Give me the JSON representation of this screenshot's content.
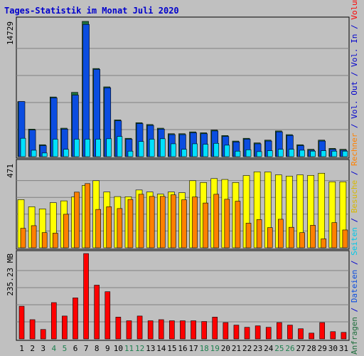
{
  "title": "Tages-Statistik im Monat Juli 2020",
  "colors": {
    "background": "#c0c0c0",
    "title": "#0000cc",
    "anfragen": "#1e6e3c",
    "dateien": "#0b4de0",
    "seiten": "#00e0ff",
    "besuche": "#ffff00",
    "rechner": "#ff8000",
    "volumen": "#ff0000",
    "weekend_label": "#208050",
    "grid": "#808080"
  },
  "chart_data": [
    {
      "type": "bar",
      "panel": "top",
      "y_tick_label": "14729",
      "ylim": [
        0,
        14729
      ],
      "categories": [
        "1",
        "2",
        "3",
        "4",
        "5",
        "6",
        "7",
        "8",
        "9",
        "10",
        "11",
        "12",
        "13",
        "14",
        "15",
        "16",
        "17",
        "18",
        "19",
        "20",
        "21",
        "22",
        "23",
        "24",
        "25",
        "26",
        "27",
        "28",
        "29",
        "30",
        "31"
      ],
      "series": [
        {
          "name": "Anfragen",
          "values": [
            6000,
            3000,
            1300,
            6500,
            3100,
            7000,
            14729,
            9600,
            7600,
            4000,
            2000,
            3700,
            3500,
            3100,
            2500,
            2500,
            2700,
            2600,
            2900,
            2300,
            1700,
            2000,
            1500,
            1800,
            2800,
            2400,
            1300,
            800,
            1800,
            900,
            800
          ]
        },
        {
          "name": "Dateien",
          "values": [
            6000,
            2900,
            1200,
            6400,
            3000,
            6700,
            14400,
            9500,
            7500,
            3900,
            1900,
            3600,
            3400,
            3000,
            2400,
            2400,
            2600,
            2500,
            2800,
            2200,
            1600,
            1900,
            1400,
            1700,
            2700,
            2300,
            1200,
            700,
            1700,
            800,
            700
          ]
        },
        {
          "name": "Seiten",
          "values": [
            2000,
            700,
            400,
            1900,
            800,
            1900,
            1900,
            1900,
            1950,
            2200,
            600,
            1650,
            1900,
            1950,
            1400,
            800,
            1400,
            1350,
            1450,
            1250,
            600,
            750,
            550,
            650,
            800,
            800,
            700,
            600,
            650,
            600,
            600
          ]
        }
      ]
    },
    {
      "type": "bar",
      "panel": "middle",
      "y_tick_label": "471",
      "ylim": [
        0,
        471
      ],
      "categories": [
        "1",
        "2",
        "3",
        "4",
        "5",
        "6",
        "7",
        "8",
        "9",
        "10",
        "11",
        "12",
        "13",
        "14",
        "15",
        "16",
        "17",
        "18",
        "19",
        "20",
        "21",
        "22",
        "23",
        "24",
        "25",
        "26",
        "27",
        "28",
        "29",
        "30",
        "31"
      ],
      "series": [
        {
          "name": "Besuche",
          "values": [
            270,
            230,
            218,
            253,
            263,
            285,
            350,
            376,
            313,
            287,
            286,
            324,
            313,
            301,
            313,
            309,
            376,
            366,
            388,
            383,
            366,
            405,
            426,
            425,
            409,
            402,
            409,
            406,
            418,
            370,
            370
          ]
        },
        {
          "name": "Rechner",
          "values": [
            109,
            124,
            85,
            82,
            188,
            312,
            360,
            215,
            230,
            220,
            271,
            300,
            288,
            288,
            297,
            269,
            285,
            251,
            300,
            272,
            261,
            138,
            158,
            113,
            160,
            115,
            85,
            126,
            50,
            141,
            100
          ]
        }
      ]
    },
    {
      "type": "bar",
      "panel": "bottom",
      "y_tick_label": "235.23 MB",
      "ylim": [
        0,
        235.23
      ],
      "categories": [
        "1",
        "2",
        "3",
        "4",
        "5",
        "6",
        "7",
        "8",
        "9",
        "10",
        "11",
        "12",
        "13",
        "14",
        "15",
        "16",
        "17",
        "18",
        "19",
        "20",
        "21",
        "22",
        "23",
        "24",
        "25",
        "26",
        "27",
        "28",
        "29",
        "30",
        "31"
      ],
      "series": [
        {
          "name": "Volumen",
          "values": [
            90,
            53,
            26,
            100,
            63,
            113,
            235,
            148,
            130,
            60,
            50,
            63,
            50,
            53,
            50,
            50,
            50,
            48,
            60,
            45,
            38,
            32,
            36,
            32,
            45,
            38,
            28,
            16,
            45,
            20,
            18
          ]
        }
      ]
    }
  ],
  "right_labels": {
    "top": [
      {
        "text": "Anfragen",
        "color": "#1e6e3c"
      },
      {
        "text": " / ",
        "color": "#0000cc"
      },
      {
        "text": "Dateien",
        "color": "#0b4de0"
      },
      {
        "text": " / ",
        "color": "#0000cc"
      },
      {
        "text": "Seiten",
        "color": "#00c8e8"
      },
      {
        "text": " / ",
        "color": "#0000cc"
      },
      {
        "text": "Besuche",
        "color": "#d8b800"
      },
      {
        "text": " / ",
        "color": "#0000cc"
      },
      {
        "text": "Rechner",
        "color": "#ff8000"
      },
      {
        "text": " / ",
        "color": "#0000cc"
      },
      {
        "text": "Vol. Out",
        "color": "#0000cc"
      },
      {
        "text": " / ",
        "color": "#0000cc"
      },
      {
        "text": "Vol. In",
        "color": "#0000cc"
      },
      {
        "text": " / ",
        "color": "#0000cc"
      },
      {
        "text": "Volumen",
        "color": "#ff0000"
      }
    ]
  },
  "weekend_days": [
    "4",
    "5",
    "11",
    "12",
    "18",
    "19",
    "25",
    "26"
  ]
}
